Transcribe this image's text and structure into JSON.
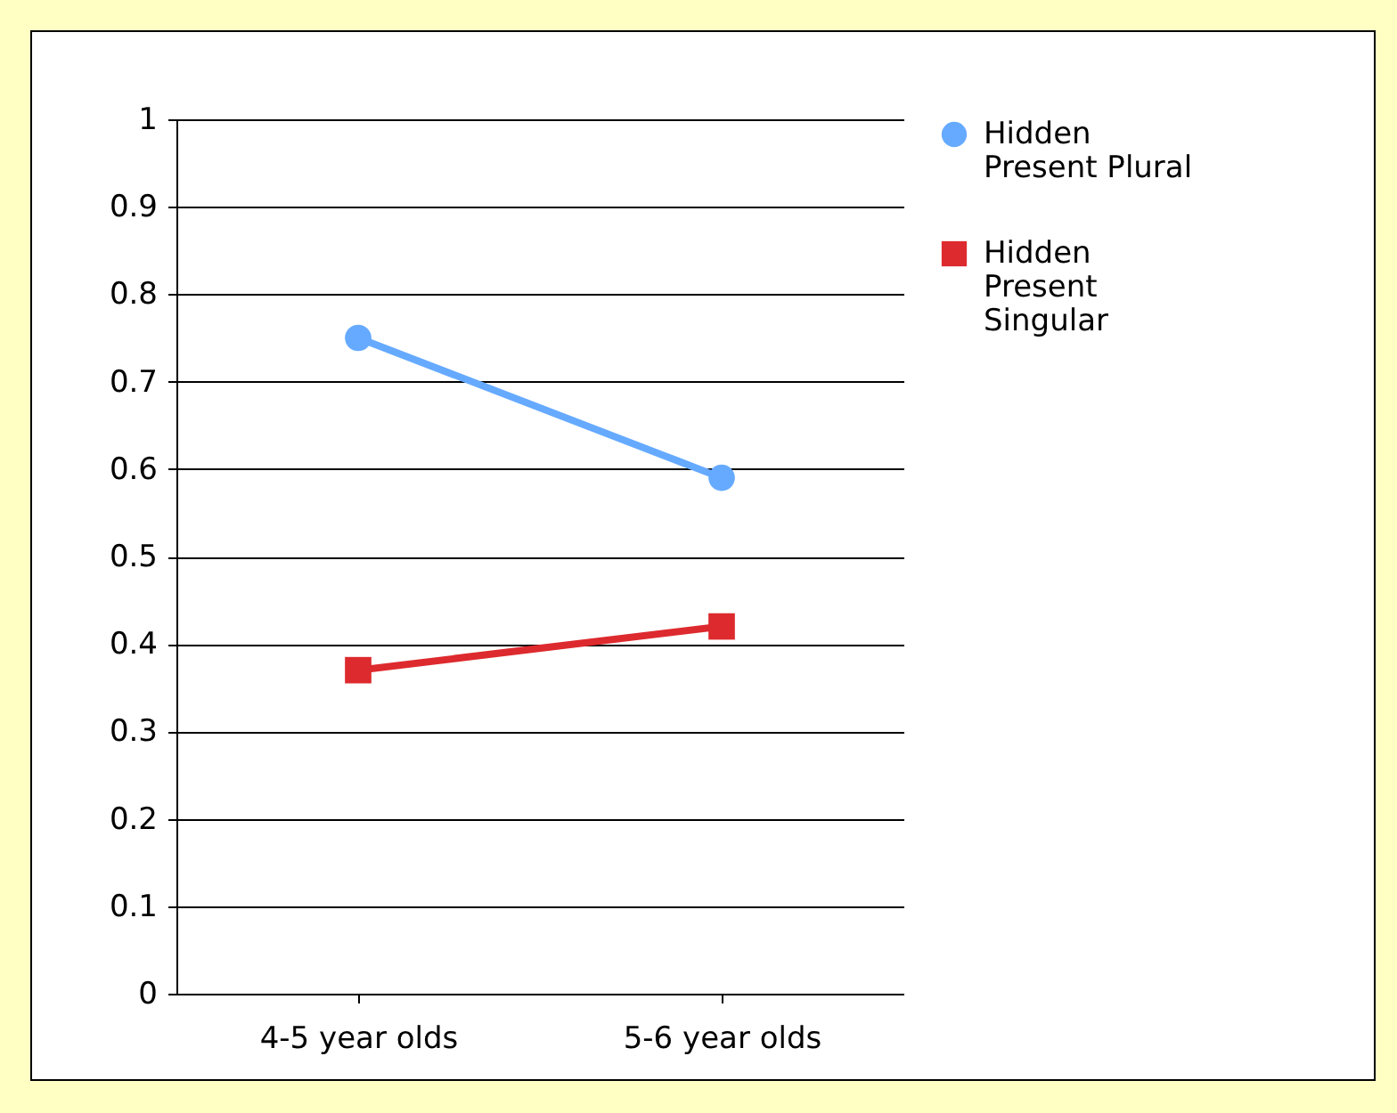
{
  "chart_data": {
    "type": "line",
    "categories": [
      "4-5 year olds",
      "5-6 year olds"
    ],
    "series": [
      {
        "name": "Hidden Present Plural",
        "color": "#66aaff",
        "marker": "circle",
        "values": [
          0.75,
          0.59
        ]
      },
      {
        "name": "Hidden Present Singular",
        "color": "#dd2a2e",
        "marker": "square",
        "values": [
          0.37,
          0.42
        ]
      }
    ],
    "ylim": [
      0,
      1
    ],
    "yticks": [
      0,
      0.1,
      0.2,
      0.3,
      0.4,
      0.5,
      0.6,
      0.7,
      0.8,
      0.9,
      1
    ],
    "grid": "y",
    "legend": "right"
  }
}
